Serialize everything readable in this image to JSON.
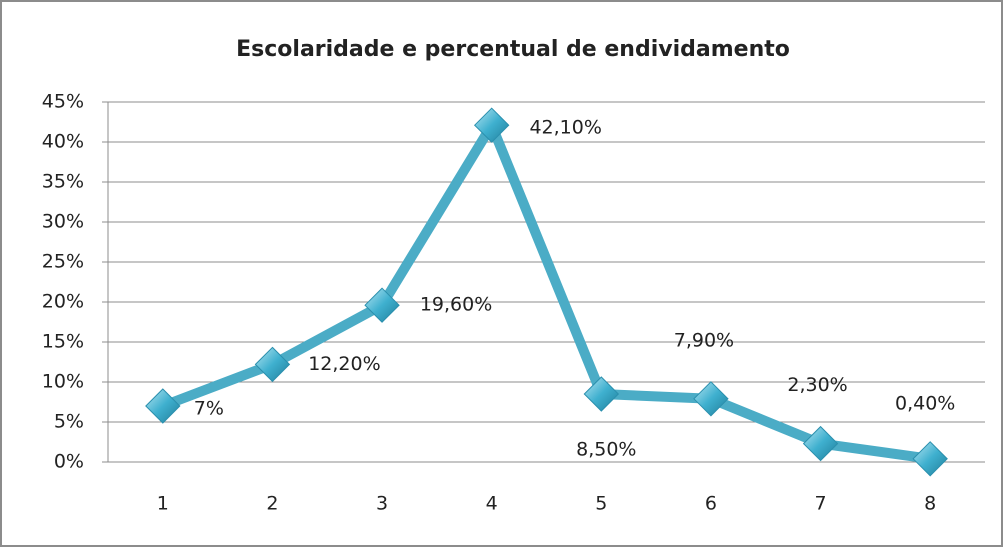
{
  "chart_data": {
    "type": "line",
    "title": "Escolaridade e percentual de endividamento",
    "categories": [
      "1",
      "2",
      "3",
      "4",
      "5",
      "6",
      "7",
      "8"
    ],
    "values": [
      7,
      12.2,
      19.6,
      42.1,
      8.5,
      7.9,
      2.3,
      0.4
    ],
    "value_labels": [
      "7%",
      "12,20%",
      "19,60%",
      "42,10%",
      "8,50%",
      "7,90%",
      "2,30%",
      "0,40%"
    ],
    "color": "#4bacc6",
    "ylim": [
      0,
      45
    ],
    "yticks": [
      {
        "value": 0,
        "label": "0%"
      },
      {
        "value": 5,
        "label": "5%"
      },
      {
        "value": 10,
        "label": "10%"
      },
      {
        "value": 15,
        "label": "15%"
      },
      {
        "value": 20,
        "label": "20%"
      },
      {
        "value": 25,
        "label": "25%"
      },
      {
        "value": 30,
        "label": "30%"
      },
      {
        "value": 35,
        "label": "35%"
      },
      {
        "value": 40,
        "label": "40%"
      },
      {
        "value": 45,
        "label": "45%"
      }
    ],
    "grid": true
  }
}
